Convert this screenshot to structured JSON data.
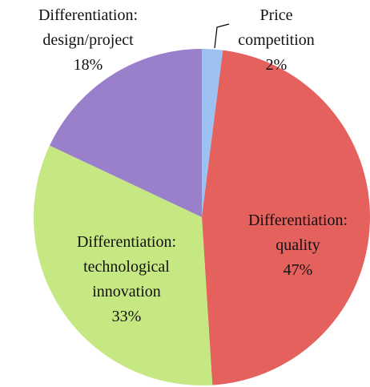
{
  "chart_data": {
    "type": "pie",
    "categories": [
      "Price competition",
      "Differentiation: quality",
      "Differentiation: technological innovation",
      "Differentiation: design/project"
    ],
    "values": [
      2,
      47,
      33,
      18
    ],
    "value_labels": [
      "2%",
      "47%",
      "33%",
      "18%"
    ],
    "colors": [
      "#9dc1f0",
      "#e4615e",
      "#c5e883",
      "#9a7fca"
    ]
  }
}
